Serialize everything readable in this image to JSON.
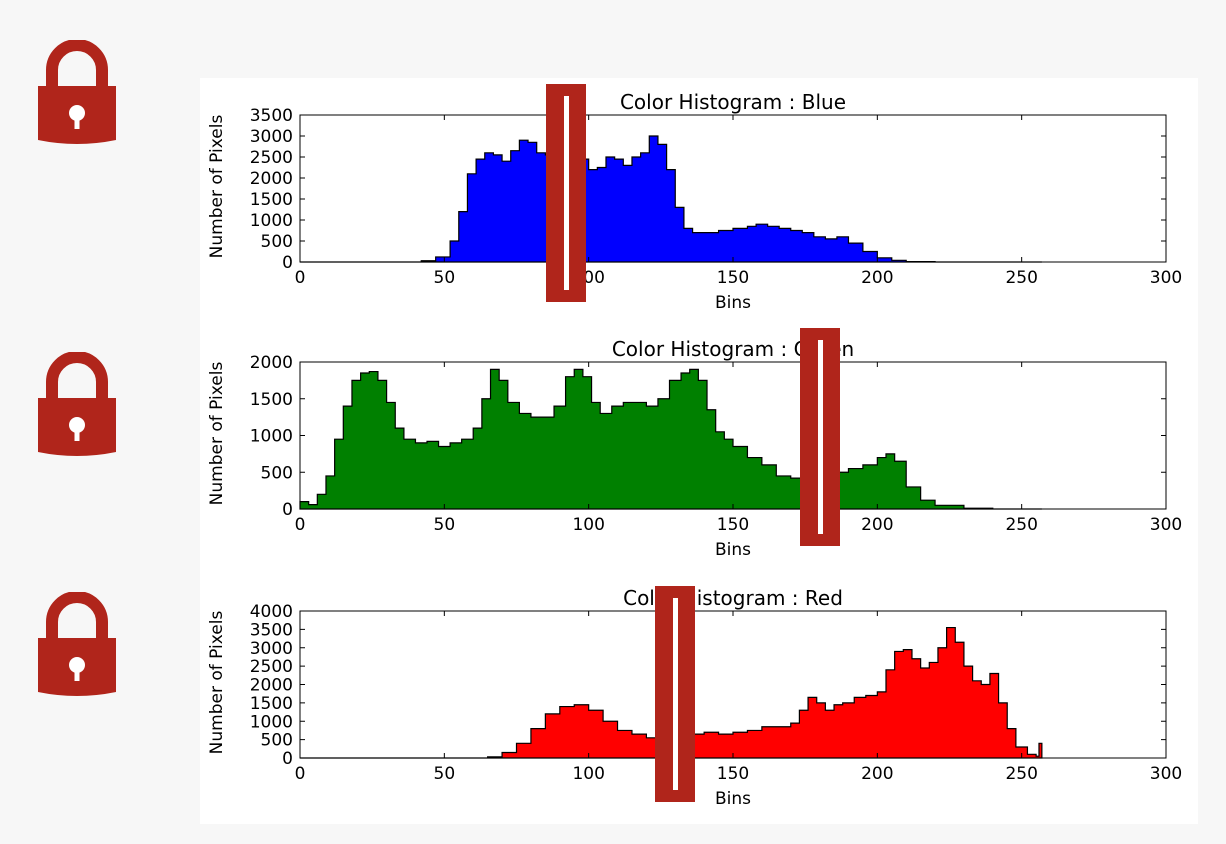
{
  "colors": {
    "lock": "#b0251b",
    "marker": "#b0251b"
  },
  "locks": [
    {
      "icon": "lock-icon",
      "channel": "blue"
    },
    {
      "icon": "lock-icon",
      "channel": "green"
    },
    {
      "icon": "lock-icon",
      "channel": "red"
    }
  ],
  "markers": [
    {
      "channel": "blue",
      "value": 92
    },
    {
      "channel": "green",
      "value": 180
    },
    {
      "channel": "red",
      "value": 130
    }
  ],
  "chart_data": [
    {
      "type": "area",
      "title": "Color Histogram : Blue",
      "xlabel": "Bins",
      "ylabel": "Number of Pixels",
      "xlim": [
        0,
        300
      ],
      "ylim": [
        0,
        3500
      ],
      "xticks": [
        0,
        50,
        100,
        150,
        200,
        250,
        300
      ],
      "yticks": [
        0,
        500,
        1000,
        1500,
        2000,
        2500,
        3000,
        3500
      ],
      "grid": false,
      "fill": "#0000ff",
      "x": [
        0,
        35,
        42,
        47,
        52,
        55,
        58,
        61,
        64,
        67,
        70,
        73,
        76,
        79,
        82,
        85,
        88,
        91,
        94,
        97,
        100,
        103,
        106,
        109,
        112,
        115,
        118,
        121,
        124,
        127,
        130,
        133,
        136,
        140,
        145,
        150,
        155,
        158,
        162,
        166,
        170,
        174,
        178,
        182,
        186,
        190,
        195,
        200,
        205,
        210,
        220,
        230,
        256
      ],
      "y": [
        0,
        0,
        30,
        120,
        500,
        1200,
        2100,
        2450,
        2600,
        2550,
        2400,
        2650,
        2900,
        2850,
        2600,
        2550,
        2500,
        2800,
        2850,
        2450,
        2200,
        2250,
        2500,
        2450,
        2300,
        2500,
        2600,
        3000,
        2800,
        2200,
        1300,
        800,
        700,
        700,
        750,
        800,
        850,
        900,
        850,
        800,
        750,
        700,
        600,
        550,
        600,
        450,
        250,
        100,
        40,
        10,
        0,
        0,
        0
      ]
    },
    {
      "type": "area",
      "title": "Color Histogram : Green",
      "xlabel": "Bins",
      "ylabel": "Number of Pixels",
      "xlim": [
        0,
        300
      ],
      "ylim": [
        0,
        2000
      ],
      "xticks": [
        0,
        50,
        100,
        150,
        200,
        250,
        300
      ],
      "yticks": [
        0,
        500,
        1000,
        1500,
        2000
      ],
      "grid": false,
      "fill": "#008000",
      "x": [
        0,
        3,
        6,
        9,
        12,
        15,
        18,
        21,
        24,
        27,
        30,
        33,
        36,
        40,
        44,
        48,
        52,
        56,
        60,
        63,
        66,
        69,
        72,
        76,
        80,
        84,
        88,
        92,
        95,
        98,
        101,
        104,
        108,
        112,
        116,
        120,
        124,
        128,
        132,
        135,
        138,
        141,
        144,
        147,
        150,
        155,
        160,
        165,
        170,
        175,
        180,
        185,
        190,
        195,
        200,
        203,
        206,
        210,
        215,
        220,
        230,
        240,
        256
      ],
      "y": [
        100,
        60,
        200,
        450,
        950,
        1400,
        1750,
        1850,
        1870,
        1750,
        1450,
        1100,
        950,
        900,
        920,
        850,
        900,
        950,
        1100,
        1500,
        1900,
        1750,
        1450,
        1300,
        1250,
        1250,
        1400,
        1800,
        1900,
        1800,
        1450,
        1300,
        1400,
        1450,
        1450,
        1400,
        1500,
        1750,
        1850,
        1900,
        1750,
        1350,
        1050,
        950,
        850,
        700,
        600,
        450,
        420,
        400,
        430,
        500,
        550,
        600,
        700,
        750,
        650,
        300,
        120,
        50,
        10,
        0,
        0
      ]
    },
    {
      "type": "area",
      "title": "Color Histogram : Red",
      "xlabel": "Bins",
      "ylabel": "Number of Pixels",
      "xlim": [
        0,
        300
      ],
      "ylim": [
        0,
        4000
      ],
      "xticks": [
        0,
        50,
        100,
        150,
        200,
        250,
        300
      ],
      "yticks": [
        0,
        500,
        1000,
        1500,
        2000,
        2500,
        3000,
        3500,
        4000
      ],
      "grid": false,
      "fill": "#ff0000",
      "x": [
        0,
        60,
        65,
        70,
        75,
        80,
        85,
        90,
        95,
        100,
        105,
        110,
        115,
        120,
        125,
        130,
        135,
        140,
        145,
        150,
        155,
        160,
        165,
        170,
        173,
        176,
        179,
        182,
        185,
        188,
        192,
        196,
        200,
        203,
        206,
        209,
        212,
        215,
        218,
        221,
        224,
        227,
        230,
        233,
        236,
        239,
        242,
        245,
        248,
        252,
        255,
        256
      ],
      "y": [
        0,
        0,
        30,
        150,
        400,
        800,
        1200,
        1400,
        1450,
        1300,
        1000,
        750,
        650,
        550,
        500,
        500,
        650,
        700,
        650,
        700,
        750,
        850,
        850,
        950,
        1300,
        1650,
        1500,
        1300,
        1450,
        1500,
        1650,
        1700,
        1800,
        2400,
        2900,
        2950,
        2700,
        2450,
        2600,
        3000,
        3550,
        3150,
        2500,
        2100,
        2000,
        2300,
        1500,
        800,
        300,
        100,
        50,
        400
      ]
    }
  ]
}
